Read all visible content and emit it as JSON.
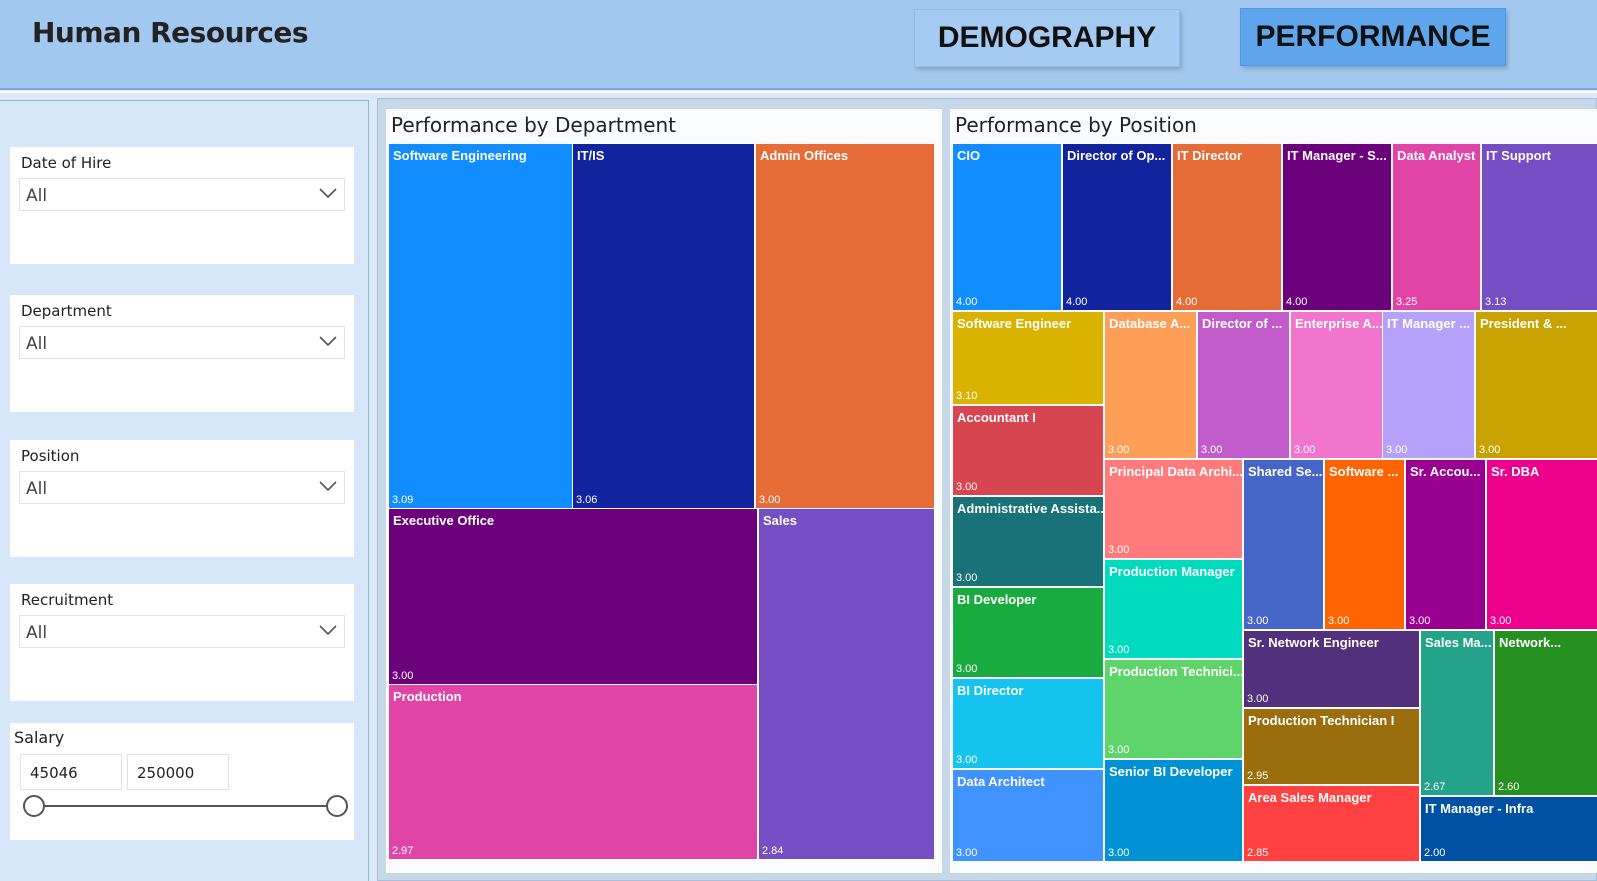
{
  "app": {
    "title": "Human Resources"
  },
  "nav": {
    "demography": "DEMOGRAPHY",
    "performance": "PERFORMANCE"
  },
  "filters": {
    "date_of_hire": {
      "label": "Date of Hire",
      "value": "All"
    },
    "department": {
      "label": "Department",
      "value": "All"
    },
    "position": {
      "label": "Position",
      "value": "All"
    },
    "recruitment": {
      "label": "Recruitment",
      "value": "All"
    },
    "salary": {
      "label": "Salary",
      "min": "45046",
      "max": "250000"
    }
  },
  "colors": {
    "header": "#a3c8ef",
    "active_tab": "#5fa6ed",
    "sidebar": "#d6e7f9"
  },
  "icons": {
    "dropdown": "chevron-down-icon",
    "slider": "slider-handle"
  },
  "chart_data": [
    {
      "type": "treemap",
      "title": "Performance by Department",
      "items": [
        {
          "label": "Software Engineering",
          "value": "3.09",
          "color": "#118dff"
        },
        {
          "label": "IT/IS",
          "value": "3.06",
          "color": "#12239e"
        },
        {
          "label": "Admin Offices",
          "value": "3.00",
          "color": "#e66c37"
        },
        {
          "label": "Executive Office",
          "value": "3.00",
          "color": "#6b007b"
        },
        {
          "label": "Sales",
          "value": "2.84",
          "color": "#744ec2"
        },
        {
          "label": "Production",
          "value": "2.97",
          "color": "#e044a7"
        }
      ]
    },
    {
      "type": "treemap",
      "title": "Performance by Position",
      "items": [
        {
          "label": "CIO",
          "value": "4.00",
          "color": "#118dff"
        },
        {
          "label": "Director of Op...",
          "value": "4.00",
          "color": "#12239e"
        },
        {
          "label": "IT Director",
          "value": "4.00",
          "color": "#e66c37"
        },
        {
          "label": "IT Manager - S...",
          "value": "4.00",
          "color": "#6b007b"
        },
        {
          "label": "Data Analyst",
          "value": "3.25",
          "color": "#e044a7"
        },
        {
          "label": "IT Support",
          "value": "3.13",
          "color": "#744ec2"
        },
        {
          "label": "Software Engineer",
          "value": "3.10",
          "color": "#d9b300"
        },
        {
          "label": "Database A...",
          "value": "3.00",
          "color": "#ff9f57"
        },
        {
          "label": "Director of ...",
          "value": "3.00",
          "color": "#c05bc9"
        },
        {
          "label": "Enterprise A...",
          "value": "3.00",
          "color": "#f175cd"
        },
        {
          "label": "IT Manager ...",
          "value": "3.00",
          "color": "#b6a1fa"
        },
        {
          "label": "President & ...",
          "value": "3.00",
          "color": "#c7a200"
        },
        {
          "label": "Accountant I",
          "value": "3.00",
          "color": "#d64550"
        },
        {
          "label": "Principal Data Archi...",
          "value": "3.00",
          "color": "#ff7b7b"
        },
        {
          "label": "Shared Se...",
          "value": "3.00",
          "color": "#4565c7"
        },
        {
          "label": "Software ...",
          "value": "3.00",
          "color": "#ff6400"
        },
        {
          "label": "Sr. Accou...",
          "value": "3.00",
          "color": "#9a008f"
        },
        {
          "label": "Sr. DBA",
          "value": "3.00",
          "color": "#ec008c"
        },
        {
          "label": "Administrative Assista...",
          "value": "3.00",
          "color": "#197278"
        },
        {
          "label": "Production Manager",
          "value": "3.00",
          "color": "#01dbbd"
        },
        {
          "label": "BI Developer",
          "value": "3.00",
          "color": "#1aab40"
        },
        {
          "label": "Sr. Network Engineer",
          "value": "3.00",
          "color": "#52307c"
        },
        {
          "label": "Sales Ma...",
          "value": "2.67",
          "color": "#23a389"
        },
        {
          "label": "Network...",
          "value": "2.60",
          "color": "#258f1f"
        },
        {
          "label": "Production Technici...",
          "value": "3.00",
          "color": "#5ed46a"
        },
        {
          "label": "BI Director",
          "value": "3.00",
          "color": "#14c4ef"
        },
        {
          "label": "Production Technician I",
          "value": "2.95",
          "color": "#9a6e0c"
        },
        {
          "label": "Data Architect",
          "value": "3.00",
          "color": "#4092ff"
        },
        {
          "label": "Senior BI Developer",
          "value": "3.00",
          "color": "#0092d4"
        },
        {
          "label": "Area Sales Manager",
          "value": "2.85",
          "color": "#ff4141"
        },
        {
          "label": "IT Manager - Infra",
          "value": "2.00",
          "color": "#0051a3"
        }
      ]
    }
  ]
}
